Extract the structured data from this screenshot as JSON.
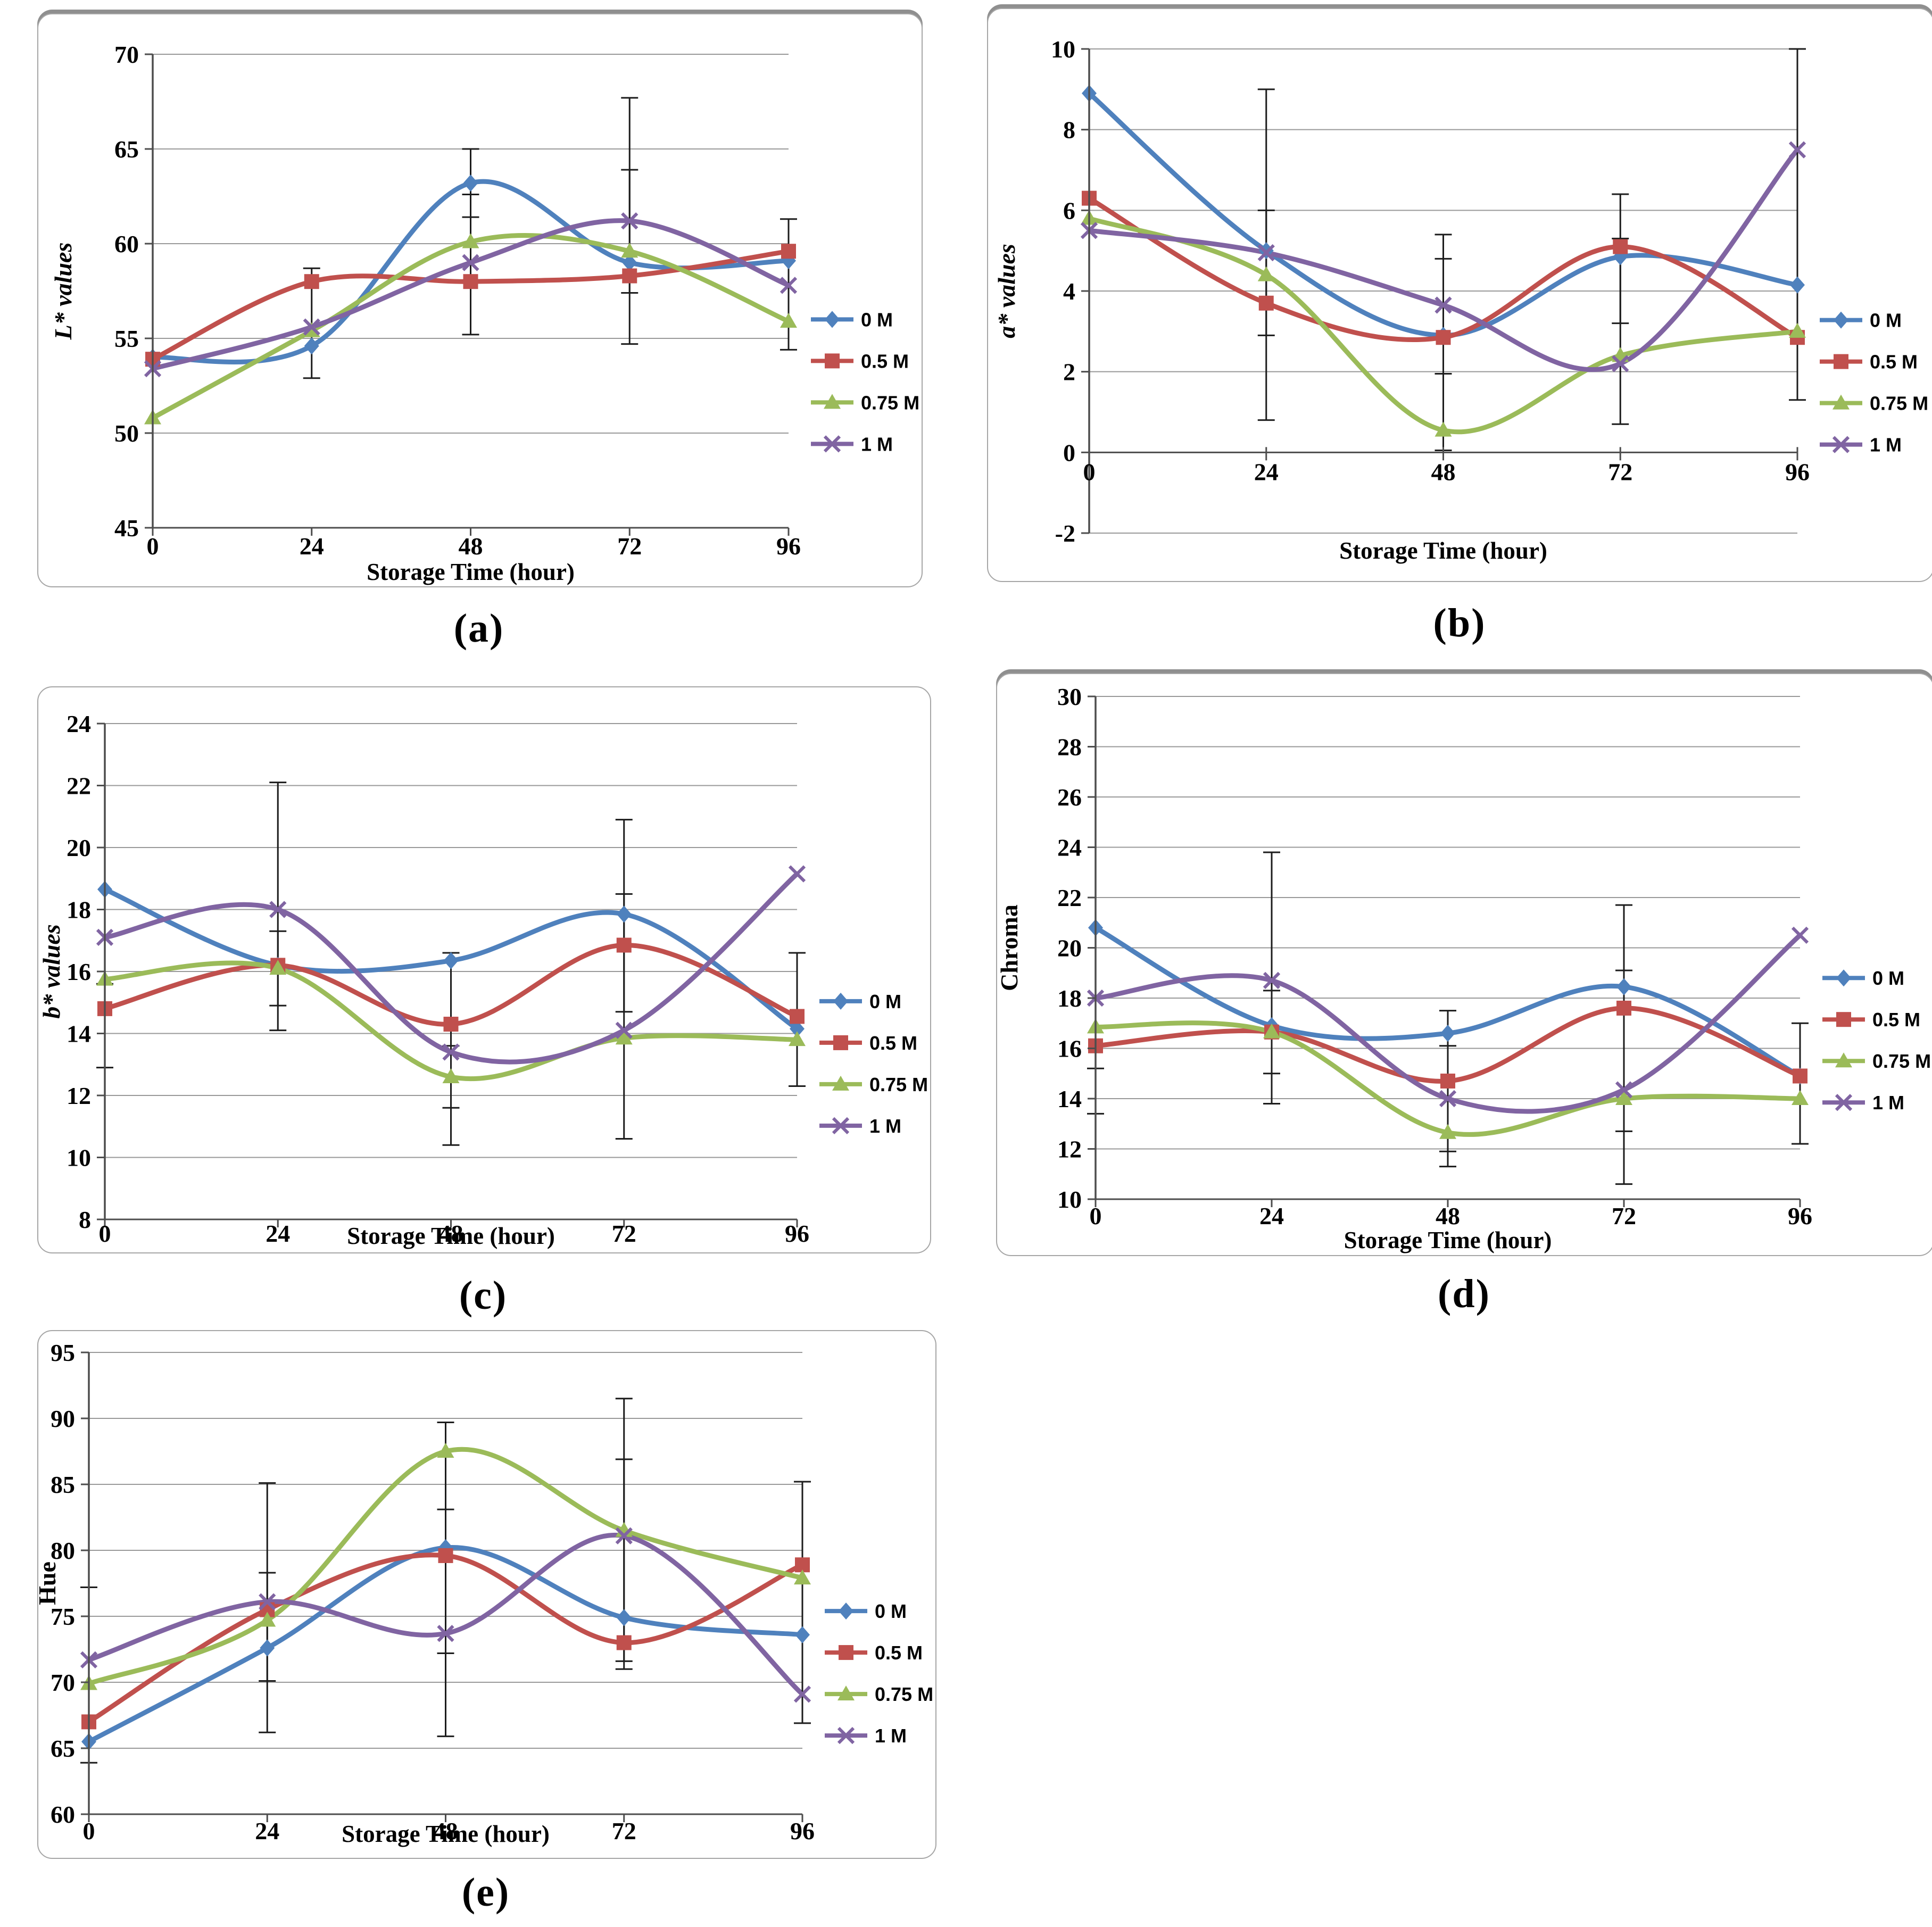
{
  "figure": {
    "background": "#ffffff"
  },
  "style": {
    "gridline_color": "#999999",
    "axis_color": "#4d4d4d",
    "error_bar_color": "#1c1c1c",
    "text_color": "#000000"
  },
  "legend": {
    "items": [
      {
        "label": "0 M",
        "marker": "diamond",
        "color": "#4f81bd"
      },
      {
        "label": "0.5 M",
        "marker": "square",
        "color": "#c0504d"
      },
      {
        "label": "0.75 M",
        "marker": "triangle",
        "color": "#9bbb59"
      },
      {
        "label": "1 M",
        "marker": "x-cross",
        "color": "#8064a2"
      }
    ]
  },
  "chart_data": [
    {
      "id": "a",
      "panel_label": "(a)",
      "type": "line",
      "title": "",
      "xlabel": "Storage Time (hour)",
      "ylabel": "L* values",
      "ylabel_italic": true,
      "categories": [
        "0",
        "24",
        "48",
        "72",
        "96"
      ],
      "ylim": [
        45,
        70
      ],
      "yticks": [
        45,
        50,
        55,
        60,
        65,
        70
      ],
      "grid": true,
      "legend_position": "right",
      "series": [
        {
          "name": "0 M",
          "values": [
            54.0,
            54.6,
            63.2,
            59.0,
            59.1
          ]
        },
        {
          "name": "0.5 M",
          "values": [
            53.9,
            58.0,
            58.0,
            58.3,
            59.6
          ]
        },
        {
          "name": "0.75 M",
          "values": [
            50.8,
            55.4,
            60.1,
            59.6,
            55.9
          ]
        },
        {
          "name": "1 M",
          "values": [
            53.4,
            55.6,
            59.0,
            61.2,
            57.8
          ]
        }
      ],
      "error_bars": [
        {
          "x_index": 1,
          "low": 52.9,
          "high": 58.7
        },
        {
          "x_index": 2,
          "low": 55.2,
          "high": 65.0
        },
        {
          "x_index": 2,
          "low": 61.4,
          "high": 62.6
        },
        {
          "x_index": 3,
          "low": 54.7,
          "high": 67.7
        },
        {
          "x_index": 3,
          "low": 57.4,
          "high": 63.9
        },
        {
          "x_index": 4,
          "low": 54.4,
          "high": 61.3
        }
      ]
    },
    {
      "id": "b",
      "panel_label": "(b)",
      "type": "line",
      "title": "",
      "xlabel": "Storage Time (hour)",
      "ylabel": "a* values",
      "ylabel_italic": true,
      "categories": [
        "0",
        "24",
        "48",
        "72",
        "96"
      ],
      "ylim": [
        -2,
        10
      ],
      "yticks": [
        -2,
        0,
        2,
        4,
        6,
        8,
        10
      ],
      "x_axis_at": 0,
      "grid": true,
      "legend_position": "right",
      "series": [
        {
          "name": "0 M",
          "values": [
            8.9,
            5.0,
            2.9,
            4.85,
            4.15
          ]
        },
        {
          "name": "0.5 M",
          "values": [
            6.3,
            3.7,
            2.85,
            5.1,
            2.85
          ]
        },
        {
          "name": "0.75 M",
          "values": [
            5.8,
            4.4,
            0.55,
            2.4,
            3.0
          ]
        },
        {
          "name": "1 M",
          "values": [
            5.5,
            4.95,
            3.65,
            2.2,
            7.5
          ]
        }
      ],
      "error_bars": [
        {
          "x_index": 1,
          "low": 0.8,
          "high": 9.0
        },
        {
          "x_index": 1,
          "low": 2.9,
          "high": 6.0
        },
        {
          "x_index": 2,
          "low": 0.05,
          "high": 5.4
        },
        {
          "x_index": 2,
          "low": 1.95,
          "high": 4.8
        },
        {
          "x_index": 3,
          "low": 0.7,
          "high": 6.4
        },
        {
          "x_index": 3,
          "low": 3.2,
          "high": 5.3
        },
        {
          "x_index": 4,
          "low": 1.3,
          "high": 10.0
        }
      ]
    },
    {
      "id": "c",
      "panel_label": "(c)",
      "type": "line",
      "title": "",
      "xlabel": "Storage Time (hour)",
      "ylabel": "b* values",
      "ylabel_italic": true,
      "categories": [
        "0",
        "24",
        "48",
        "72",
        "96"
      ],
      "ylim": [
        8,
        24
      ],
      "yticks": [
        8,
        10,
        12,
        14,
        16,
        18,
        20,
        22,
        24
      ],
      "grid": true,
      "legend_position": "right",
      "series": [
        {
          "name": "0 M",
          "values": [
            18.65,
            16.2,
            16.35,
            17.85,
            14.15
          ]
        },
        {
          "name": "0.5 M",
          "values": [
            14.8,
            16.2,
            14.3,
            16.85,
            14.55
          ]
        },
        {
          "name": "0.75 M",
          "values": [
            15.75,
            16.1,
            12.6,
            13.85,
            13.8
          ]
        },
        {
          "name": "1 M",
          "values": [
            17.1,
            18.0,
            13.4,
            14.1,
            19.15
          ]
        }
      ],
      "error_bars": [
        {
          "x_index": 0,
          "low": 12.9,
          "high": 15.6
        },
        {
          "x_index": 1,
          "low": 14.1,
          "high": 22.1
        },
        {
          "x_index": 1,
          "low": 14.9,
          "high": 17.3
        },
        {
          "x_index": 2,
          "low": 10.4,
          "high": 16.6
        },
        {
          "x_index": 2,
          "low": 11.6,
          "high": 13.6
        },
        {
          "x_index": 3,
          "low": 10.6,
          "high": 20.9
        },
        {
          "x_index": 3,
          "low": 14.7,
          "high": 18.5
        },
        {
          "x_index": 4,
          "low": 12.3,
          "high": 16.6
        }
      ]
    },
    {
      "id": "d",
      "panel_label": "(d)",
      "type": "line",
      "title": "",
      "xlabel": "Storage Time (hour)",
      "ylabel": "Chroma",
      "ylabel_italic": false,
      "categories": [
        "0",
        "24",
        "48",
        "72",
        "96"
      ],
      "ylim": [
        10,
        30
      ],
      "yticks": [
        10,
        12,
        14,
        16,
        18,
        20,
        22,
        24,
        26,
        28,
        30
      ],
      "grid": true,
      "legend_position": "right",
      "series": [
        {
          "name": "0 M",
          "values": [
            20.8,
            16.9,
            16.6,
            18.45,
            14.9
          ]
        },
        {
          "name": "0.5 M",
          "values": [
            16.1,
            16.65,
            14.7,
            17.6,
            14.9
          ]
        },
        {
          "name": "0.75 M",
          "values": [
            16.85,
            16.65,
            12.65,
            14.0,
            14.0
          ]
        },
        {
          "name": "1 M",
          "values": [
            18.0,
            18.7,
            14.0,
            14.35,
            20.5
          ]
        }
      ],
      "error_bars": [
        {
          "x_index": 0,
          "low": 13.4,
          "high": 15.2
        },
        {
          "x_index": 1,
          "low": 13.8,
          "high": 23.8
        },
        {
          "x_index": 1,
          "low": 15.0,
          "high": 18.3
        },
        {
          "x_index": 2,
          "low": 11.3,
          "high": 17.5
        },
        {
          "x_index": 2,
          "low": 11.9,
          "high": 16.1
        },
        {
          "x_index": 3,
          "low": 10.6,
          "high": 21.7
        },
        {
          "x_index": 3,
          "low": 12.7,
          "high": 19.1
        },
        {
          "x_index": 4,
          "low": 12.2,
          "high": 17.0
        }
      ]
    },
    {
      "id": "e",
      "panel_label": "(e)",
      "type": "line",
      "title": "",
      "xlabel": "Storage Time (hour)",
      "ylabel": "Hue",
      "ylabel_italic": false,
      "categories": [
        "0",
        "24",
        "48",
        "72",
        "96"
      ],
      "ylim": [
        60,
        95
      ],
      "yticks": [
        60,
        65,
        70,
        75,
        80,
        85,
        90,
        95
      ],
      "grid": true,
      "legend_position": "right",
      "series": [
        {
          "name": "0 M",
          "values": [
            65.5,
            72.6,
            80.2,
            74.9,
            73.6
          ]
        },
        {
          "name": "0.5 M",
          "values": [
            67.0,
            75.5,
            79.6,
            73.0,
            78.9
          ]
        },
        {
          "name": "0.75 M",
          "values": [
            69.9,
            74.7,
            87.5,
            81.5,
            77.9
          ]
        },
        {
          "name": "1 M",
          "values": [
            71.7,
            76.1,
            73.7,
            81.1,
            69.1
          ]
        }
      ],
      "error_bars": [
        {
          "x_index": 0,
          "low": 63.9,
          "high": 77.2
        },
        {
          "x_index": 1,
          "low": 66.2,
          "high": 85.1
        },
        {
          "x_index": 1,
          "low": 70.1,
          "high": 78.3
        },
        {
          "x_index": 2,
          "low": 65.9,
          "high": 89.7
        },
        {
          "x_index": 2,
          "low": 72.2,
          "high": 83.1
        },
        {
          "x_index": 3,
          "low": 71.0,
          "high": 91.5
        },
        {
          "x_index": 3,
          "low": 71.6,
          "high": 86.9
        },
        {
          "x_index": 4,
          "low": 66.9,
          "high": 85.2
        }
      ]
    }
  ]
}
